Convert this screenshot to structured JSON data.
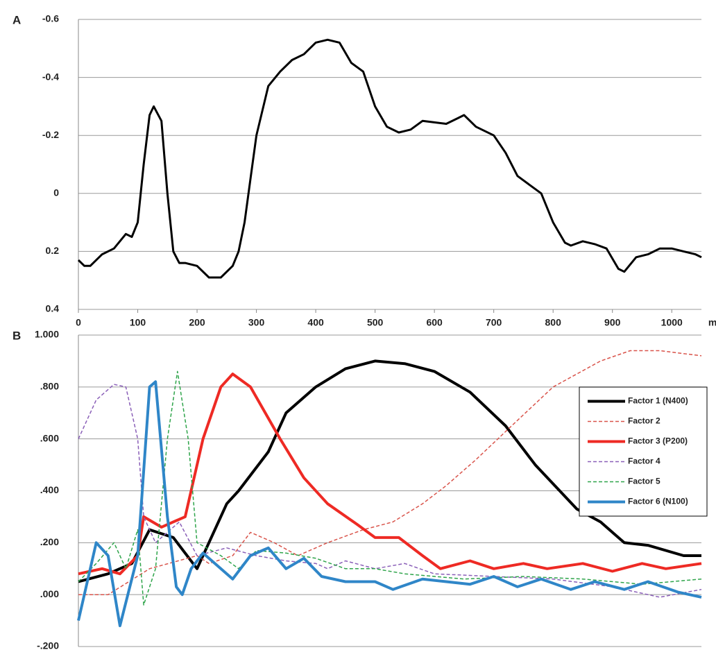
{
  "chart_data": [
    {
      "type": "line",
      "label": "A",
      "xlabel": "ms",
      "xlim": [
        0,
        1050
      ],
      "xticks": [
        0,
        100,
        200,
        300,
        400,
        500,
        600,
        700,
        800,
        900,
        1000
      ],
      "ylim": [
        -0.6,
        0.4
      ],
      "yticks": [
        -0.6,
        -0.4,
        -0.2,
        0,
        0.2,
        0.4
      ],
      "invert_y": true,
      "grid": true,
      "series": [
        {
          "color": "#000000",
          "dash": "none",
          "width": 3,
          "x": [
            0,
            10,
            20,
            40,
            60,
            80,
            90,
            100,
            110,
            120,
            127,
            140,
            150,
            160,
            170,
            180,
            200,
            220,
            240,
            260,
            270,
            280,
            290,
            300,
            320,
            340,
            360,
            380,
            400,
            420,
            440,
            460,
            480,
            500,
            520,
            540,
            560,
            580,
            600,
            620,
            640,
            650,
            670,
            700,
            720,
            740,
            760,
            780,
            800,
            820,
            830,
            850,
            870,
            890,
            910,
            920,
            940,
            960,
            980,
            1000,
            1020,
            1040,
            1050
          ],
          "values": [
            0.23,
            0.25,
            0.25,
            0.21,
            0.19,
            0.14,
            0.15,
            0.1,
            -0.1,
            -0.27,
            -0.3,
            -0.25,
            0.0,
            0.2,
            0.24,
            0.24,
            0.25,
            0.29,
            0.29,
            0.25,
            0.2,
            0.1,
            -0.05,
            -0.2,
            -0.37,
            -0.42,
            -0.46,
            -0.48,
            -0.52,
            -0.53,
            -0.52,
            -0.45,
            -0.42,
            -0.3,
            -0.23,
            -0.21,
            -0.22,
            -0.25,
            -0.245,
            -0.24,
            -0.26,
            -0.27,
            -0.23,
            -0.2,
            -0.14,
            -0.06,
            -0.03,
            0.0,
            0.1,
            0.17,
            0.18,
            0.165,
            0.175,
            0.19,
            0.26,
            0.27,
            0.22,
            0.21,
            0.19,
            0.19,
            0.2,
            0.21,
            0.22
          ]
        }
      ]
    },
    {
      "type": "line",
      "label": "B",
      "xlim": [
        0,
        1050
      ],
      "ylim": [
        -0.2,
        1.0
      ],
      "yticks": [
        {
          "value": -0.2,
          "label": "-.200"
        },
        {
          "value": 0,
          "label": ".000"
        },
        {
          "value": 0.2,
          "label": ".200"
        },
        {
          "value": 0.4,
          "label": ".400"
        },
        {
          "value": 0.6,
          "label": ".600"
        },
        {
          "value": 0.8,
          "label": ".800"
        },
        {
          "value": 1.0,
          "label": "1.000"
        }
      ],
      "grid": true,
      "legend": "upper right",
      "series": [
        {
          "name": "Factor 1 (N400)",
          "color": "#000000",
          "dash": "none",
          "width": 4,
          "x": [
            0,
            50,
            90,
            120,
            160,
            200,
            250,
            270,
            320,
            350,
            400,
            450,
            500,
            550,
            600,
            660,
            720,
            770,
            840,
            880,
            920,
            960,
            1020,
            1050
          ],
          "values": [
            0.05,
            0.08,
            0.12,
            0.25,
            0.22,
            0.1,
            0.35,
            0.4,
            0.55,
            0.7,
            0.8,
            0.87,
            0.9,
            0.89,
            0.86,
            0.78,
            0.65,
            0.5,
            0.33,
            0.28,
            0.2,
            0.19,
            0.15,
            0.15
          ]
        },
        {
          "name": "Factor 2",
          "color": "#d9534a",
          "dash": "5 3",
          "width": 1.5,
          "x": [
            0,
            50,
            120,
            200,
            220,
            260,
            290,
            330,
            370,
            420,
            480,
            530,
            580,
            620,
            670,
            730,
            800,
            880,
            930,
            980,
            1050
          ],
          "values": [
            0.0,
            0.0,
            0.1,
            0.15,
            0.12,
            0.15,
            0.24,
            0.2,
            0.15,
            0.2,
            0.25,
            0.28,
            0.35,
            0.42,
            0.52,
            0.65,
            0.8,
            0.9,
            0.94,
            0.94,
            0.92
          ]
        },
        {
          "name": "Factor 3 (P200)",
          "color": "#ee2a24",
          "dash": "none",
          "width": 4,
          "x": [
            0,
            40,
            70,
            100,
            110,
            140,
            180,
            210,
            240,
            260,
            290,
            340,
            380,
            420,
            470,
            500,
            540,
            580,
            610,
            660,
            700,
            750,
            790,
            850,
            900,
            950,
            990,
            1050
          ],
          "values": [
            0.08,
            0.1,
            0.08,
            0.15,
            0.3,
            0.26,
            0.3,
            0.6,
            0.8,
            0.85,
            0.8,
            0.6,
            0.45,
            0.35,
            0.27,
            0.22,
            0.22,
            0.15,
            0.1,
            0.13,
            0.1,
            0.12,
            0.1,
            0.12,
            0.09,
            0.12,
            0.1,
            0.12
          ]
        },
        {
          "name": "Factor 4",
          "color": "#8a5fb8",
          "dash": "5 3",
          "width": 1.5,
          "x": [
            0,
            30,
            60,
            80,
            100,
            110,
            130,
            170,
            200,
            250,
            300,
            350,
            400,
            420,
            450,
            500,
            550,
            600,
            700,
            800,
            900,
            980,
            1050
          ],
          "values": [
            0.6,
            0.75,
            0.81,
            0.8,
            0.6,
            0.3,
            0.2,
            0.28,
            0.15,
            0.18,
            0.15,
            0.13,
            0.12,
            0.1,
            0.13,
            0.1,
            0.12,
            0.08,
            0.07,
            0.06,
            0.03,
            -0.01,
            0.02
          ]
        },
        {
          "name": "Factor 5",
          "color": "#2ea44a",
          "dash": "5 3",
          "width": 1.5,
          "x": [
            0,
            30,
            60,
            80,
            100,
            110,
            130,
            150,
            167,
            185,
            200,
            240,
            270,
            300,
            350,
            400,
            450,
            500,
            550,
            650,
            750,
            850,
            950,
            1050
          ],
          "values": [
            0.05,
            0.12,
            0.2,
            0.1,
            0.25,
            -0.04,
            0.1,
            0.6,
            0.86,
            0.6,
            0.2,
            0.15,
            0.1,
            0.17,
            0.16,
            0.14,
            0.1,
            0.1,
            0.08,
            0.06,
            0.07,
            0.06,
            0.04,
            0.06
          ]
        },
        {
          "name": "Factor 6 (N100)",
          "color": "#2f86c8",
          "dash": "none",
          "width": 4,
          "x": [
            0,
            30,
            50,
            70,
            100,
            120,
            130,
            150,
            165,
            175,
            190,
            210,
            240,
            260,
            290,
            320,
            350,
            380,
            410,
            450,
            500,
            530,
            580,
            620,
            660,
            700,
            740,
            780,
            830,
            870,
            920,
            960,
            1010,
            1050
          ],
          "values": [
            -0.1,
            0.2,
            0.15,
            -0.12,
            0.15,
            0.8,
            0.82,
            0.3,
            0.03,
            0.0,
            0.1,
            0.16,
            0.1,
            0.06,
            0.15,
            0.18,
            0.1,
            0.14,
            0.07,
            0.05,
            0.05,
            0.02,
            0.06,
            0.05,
            0.04,
            0.07,
            0.03,
            0.06,
            0.02,
            0.05,
            0.02,
            0.05,
            0.01,
            -0.01
          ]
        }
      ]
    }
  ]
}
